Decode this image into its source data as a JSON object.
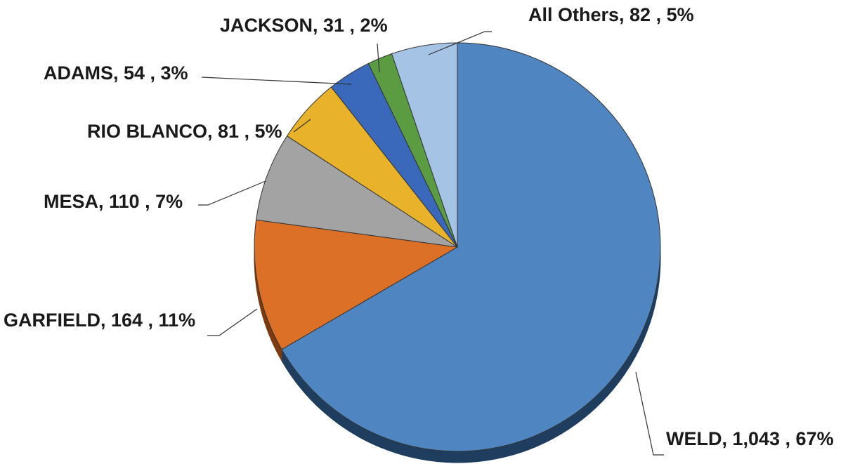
{
  "chart_data": {
    "type": "pie",
    "title": "",
    "slices": [
      {
        "name": "WELD",
        "value": 1043,
        "percent": 67,
        "color": "#4f86c1",
        "side_color": "#1e3d5f",
        "label": "WELD, 1,043 , 67%"
      },
      {
        "name": "GARFIELD",
        "value": 164,
        "percent": 11,
        "color": "#dc7026",
        "side_color": "#7d3a10",
        "label": "GARFIELD, 164 , 11%"
      },
      {
        "name": "MESA",
        "value": 110,
        "percent": 7,
        "color": "#a3a3a3",
        "side_color": "#5a5a5a",
        "label": "MESA, 110 , 7%"
      },
      {
        "name": "RIO BLANCO",
        "value": 81,
        "percent": 5,
        "color": "#e8b22a",
        "side_color": "#8a6510",
        "label": "RIO BLANCO, 81 , 5%"
      },
      {
        "name": "ADAMS",
        "value": 54,
        "percent": 3,
        "color": "#3a69bb",
        "side_color": "#1c3566",
        "label": "ADAMS, 54 , 3%"
      },
      {
        "name": "JACKSON",
        "value": 31,
        "percent": 2,
        "color": "#5b9b42",
        "side_color": "#2d5420",
        "label": "JACKSON, 31 , 2%"
      },
      {
        "name": "All Others",
        "value": 82,
        "percent": 5,
        "color": "#a5c3e5",
        "side_color": "#55708f",
        "label": "All Others, 82 , 5%"
      }
    ]
  }
}
